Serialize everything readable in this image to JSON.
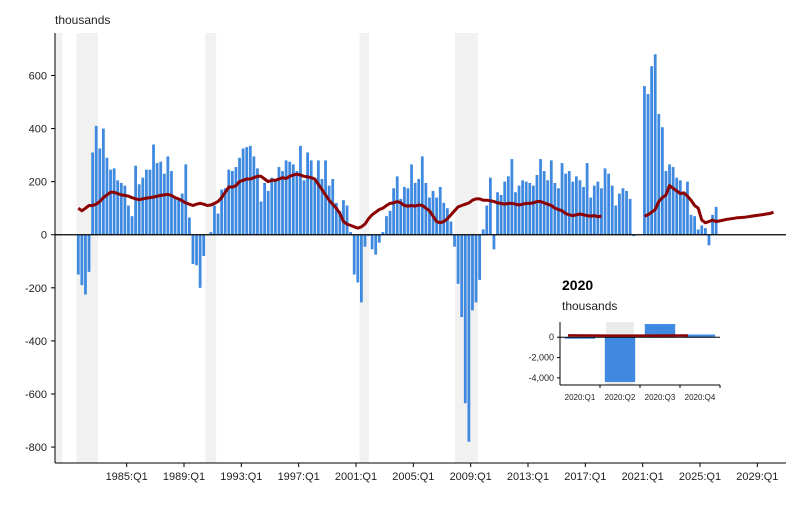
{
  "chart_data": [
    {
      "type": "bar",
      "ylabel": "thousands",
      "ylim": [
        -860,
        760
      ],
      "yticks": [
        -800,
        -600,
        -400,
        -200,
        0,
        200,
        400,
        600
      ],
      "x_tick_labels": [
        "1985:Q1",
        "1989:Q1",
        "1993:Q1",
        "1997:Q1",
        "2001:Q1",
        "2005:Q1",
        "2009:Q1",
        "2013:Q1",
        "2017:Q1",
        "2021:Q1",
        "2025:Q1",
        "2029:Q1"
      ],
      "x_start_year": 1980,
      "x_end_year": 2031,
      "recessions": [
        [
          1980.0,
          1980.5
        ],
        [
          1981.5,
          1983.0
        ],
        [
          1990.5,
          1991.25
        ],
        [
          2001.25,
          2001.9
        ],
        [
          2007.9,
          2009.5
        ]
      ],
      "colors": {
        "bars": "#3F8AE0",
        "line": "#8B0000",
        "recession": "#F1F1F1"
      },
      "series": [
        {
          "type": "bar",
          "start": 1981.5,
          "values": [
            -150,
            -190,
            -225,
            -140,
            310,
            410,
            325,
            400,
            290,
            245,
            250,
            205,
            195,
            185,
            110,
            70,
            260,
            190,
            215,
            245,
            245,
            340,
            270,
            275,
            230,
            295,
            240,
            140,
            135,
            155,
            265,
            65,
            -110,
            -115,
            -200,
            -80,
            0,
            10,
            110,
            80,
            170,
            175,
            245,
            240,
            255,
            290,
            325,
            330,
            335,
            295,
            250,
            125,
            195,
            165,
            215,
            205,
            255,
            240,
            280,
            275,
            265,
            240,
            335,
            205,
            310,
            280,
            205,
            280,
            210,
            280,
            185,
            210,
            120,
            90,
            130,
            110,
            10,
            -150,
            -180,
            -255,
            -45,
            -5,
            -55,
            -75,
            -30,
            10,
            70,
            90,
            175,
            220,
            135,
            180,
            175,
            265,
            195,
            210,
            295,
            195,
            140,
            165,
            140,
            180,
            120,
            100,
            50,
            -45,
            -185,
            -310,
            -635,
            -780,
            -285,
            -255,
            -170,
            20,
            110,
            215,
            -55,
            160,
            150,
            200,
            220,
            285,
            160,
            185,
            205,
            200,
            195,
            185,
            225,
            285,
            240,
            205,
            280,
            195,
            175,
            270,
            230,
            240,
            200,
            220,
            205,
            180,
            270,
            140,
            185,
            200,
            175,
            250,
            230,
            185,
            110,
            155,
            175,
            165,
            135,
            -5
          ],
          "series_gap_year": 2020.0,
          "start2": 2021.0,
          "values2": [
            560,
            530,
            635,
            680,
            455,
            405,
            240,
            265,
            255,
            215,
            205,
            155,
            200,
            75,
            70,
            20,
            35,
            25,
            -40,
            75,
            105
          ]
        },
        {
          "type": "line",
          "start": 1981.5,
          "values": [
            100,
            90,
            100,
            110,
            110,
            115,
            125,
            140,
            150,
            160,
            160,
            155,
            150,
            148,
            145,
            140,
            135,
            132,
            135,
            138,
            140,
            142,
            145,
            148,
            150,
            152,
            148,
            140,
            135,
            128,
            120,
            115,
            110,
            115,
            118,
            115,
            110,
            112,
            118,
            125,
            140,
            160,
            180,
            180,
            185,
            200,
            205,
            210,
            210,
            215,
            220,
            220,
            210,
            200,
            205,
            205,
            210,
            215,
            212,
            220,
            225,
            228,
            225,
            220,
            218,
            215,
            210,
            190,
            170,
            150,
            130,
            115,
            100,
            80,
            50,
            40,
            35,
            30,
            25,
            30,
            40,
            60,
            75,
            85,
            95,
            100,
            110,
            118,
            120,
            125,
            120,
            110,
            108,
            110,
            108,
            112,
            110,
            100,
            90,
            70,
            50,
            45,
            50,
            60,
            75,
            90,
            105,
            110,
            115,
            120,
            130,
            135,
            135,
            130,
            130,
            128,
            125,
            120,
            118,
            115,
            118,
            118,
            115,
            112,
            115,
            118,
            118,
            120,
            125,
            125,
            120,
            115,
            110,
            100,
            95,
            90,
            80,
            75,
            72,
            75,
            78,
            75,
            72,
            70,
            72,
            68,
            70
          ],
          "start2": 2021.0,
          "values2": [
            70,
            75,
            85,
            95,
            125,
            140,
            150,
            185,
            175,
            165,
            155,
            158,
            145,
            130,
            110,
            100,
            55,
            45,
            50,
            55,
            50,
            52,
            55,
            58,
            60,
            62,
            64,
            65,
            66,
            68,
            70,
            72,
            74,
            76,
            78,
            80,
            85
          ]
        }
      ]
    },
    {
      "type": "bar",
      "title": "2020",
      "ylabel": "thousands",
      "categories": [
        "2020:Q1",
        "2020:Q2",
        "2020:Q3",
        "2020:Q4"
      ],
      "values": [
        -150,
        -4400,
        1300,
        270
      ],
      "line_values": [
        180,
        160,
        160,
        170
      ],
      "ylim": [
        -4700,
        1500
      ],
      "yticks": [
        -4000,
        -2000,
        0
      ],
      "yticklabels": [
        "-4,000",
        "-2,000",
        "0"
      ],
      "recession_category": "2020:Q2"
    }
  ]
}
